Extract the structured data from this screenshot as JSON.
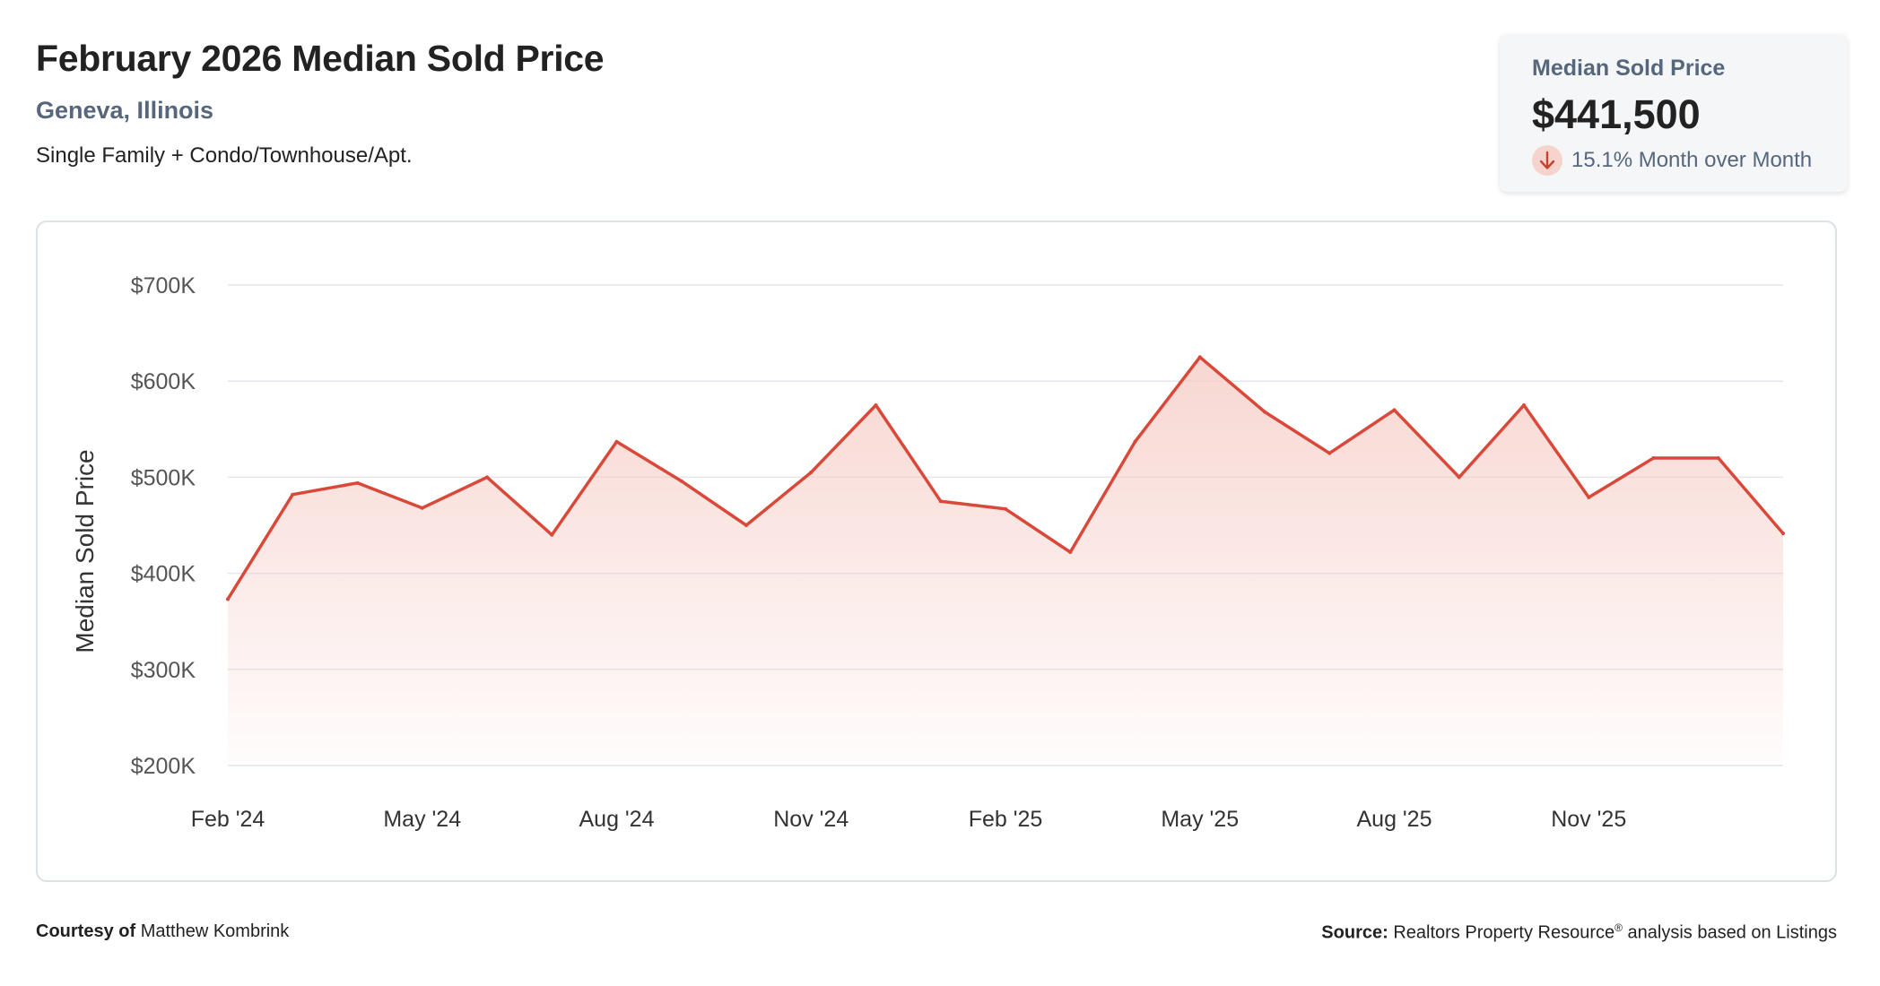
{
  "header": {
    "title": "February 2026 Median Sold Price",
    "location": "Geneva, Illinois",
    "subtitle": "Single Family + Condo/Townhouse/Apt."
  },
  "kpi": {
    "label": "Median Sold Price",
    "value": "$441,500",
    "change": "15.1% Month over Month",
    "direction_icon": "arrow-down-icon"
  },
  "colors": {
    "line": "#d9493a",
    "area_top": "#f5c9c2",
    "grid": "#e3e6ea",
    "axis_text": "#555555"
  },
  "chart_data": {
    "type": "area",
    "title": "",
    "ylabel": "Median Sold Price",
    "xlabel": "",
    "ylim": [
      200000,
      700000
    ],
    "yticks": [
      200000,
      300000,
      400000,
      500000,
      600000,
      700000
    ],
    "ytick_labels": [
      "$200K",
      "$300K",
      "$400K",
      "$500K",
      "$600K",
      "$700K"
    ],
    "xtick_labels": [
      "Feb '24",
      "May '24",
      "Aug '24",
      "Nov '24",
      "Feb '25",
      "May '25",
      "Aug '25",
      "Nov '25"
    ],
    "xtick_indices": [
      0,
      3,
      6,
      9,
      12,
      15,
      18,
      21
    ],
    "grid": true,
    "legend": "none",
    "categories": [
      "Feb 2024",
      "Mar 2024",
      "Apr 2024",
      "May 2024",
      "Jun 2024",
      "Jul 2024",
      "Aug 2024",
      "Sep 2024",
      "Oct 2024",
      "Nov 2024",
      "Dec 2024",
      "Jan 2025",
      "Feb 2025",
      "Mar 2025",
      "Apr 2025",
      "May 2025",
      "Jun 2025",
      "Jul 2025",
      "Aug 2025",
      "Sep 2025",
      "Oct 2025",
      "Nov 2025",
      "Dec 2025",
      "Jan 2026",
      "Feb 2026"
    ],
    "values": [
      373000,
      482000,
      494000,
      468000,
      500000,
      440000,
      537000,
      496000,
      450000,
      505000,
      575000,
      475000,
      467000,
      422000,
      537000,
      625000,
      568000,
      525000,
      570000,
      500000,
      575000,
      479000,
      520000,
      520000,
      441500
    ]
  },
  "footer": {
    "courtesy_label": "Courtesy of",
    "courtesy_name": "Matthew Kombrink",
    "source_label": "Source:",
    "source_text": "Realtors Property Resource",
    "source_mark": "®",
    "source_suffix": "analysis based on Listings"
  }
}
